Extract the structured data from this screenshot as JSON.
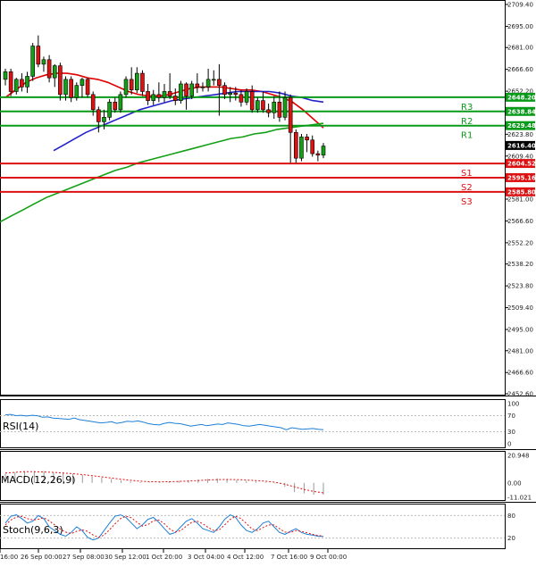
{
  "chart_data": {
    "type": "candlestick",
    "price_axis": {
      "ticks": [
        "2709.40",
        "2695.00",
        "2681.00",
        "2666.60",
        "2652.20",
        "2638.20",
        "2623.80",
        "2609.40",
        "2595.00",
        "2581.00",
        "2566.60",
        "2552.20",
        "2538.20",
        "2523.80",
        "2509.40",
        "2495.00",
        "2481.00",
        "2466.60",
        "2452.60"
      ],
      "current_price": "2616.40",
      "ylim": [
        2452.6,
        2709.4
      ]
    },
    "time_axis": {
      "ticks": [
        "16:00",
        "26 Sep 00:00",
        "27 Sep 08:00",
        "30 Sep 12:00",
        "1 Oct 20:00",
        "3 Oct 04:00",
        "4 Oct 12:00",
        "7 Oct 16:00",
        "9 Oct 00:00"
      ]
    },
    "levels": [
      {
        "name": "R3",
        "value": "2648.20",
        "color": "#0a9a1a"
      },
      {
        "name": "R2",
        "value": "2638.84",
        "color": "#0a9a1a"
      },
      {
        "name": "R1",
        "value": "2629.48",
        "color": "#0a9a1a"
      },
      {
        "name": "S1",
        "value": "2604.52",
        "color": "#dd1111"
      },
      {
        "name": "S2",
        "value": "2595.16",
        "color": "#dd1111"
      },
      {
        "name": "S3",
        "value": "2585.80",
        "color": "#dd1111"
      }
    ],
    "candles": [
      {
        "o": 2660,
        "h": 2667,
        "c": 2665,
        "l": 2656
      },
      {
        "o": 2665,
        "h": 2667,
        "c": 2652,
        "l": 2649
      },
      {
        "o": 2652,
        "h": 2661,
        "c": 2660,
        "l": 2650
      },
      {
        "o": 2660,
        "h": 2664,
        "c": 2655,
        "l": 2652
      },
      {
        "o": 2655,
        "h": 2665,
        "c": 2662,
        "l": 2651
      },
      {
        "o": 2662,
        "h": 2684,
        "c": 2682,
        "l": 2659
      },
      {
        "o": 2682,
        "h": 2689,
        "c": 2670,
        "l": 2668
      },
      {
        "o": 2670,
        "h": 2675,
        "c": 2673,
        "l": 2665
      },
      {
        "o": 2673,
        "h": 2676,
        "c": 2661,
        "l": 2658
      },
      {
        "o": 2661,
        "h": 2670,
        "c": 2669,
        "l": 2655
      },
      {
        "o": 2669,
        "h": 2671,
        "c": 2650,
        "l": 2646
      },
      {
        "o": 2650,
        "h": 2662,
        "c": 2660,
        "l": 2646
      },
      {
        "o": 2660,
        "h": 2662,
        "c": 2648,
        "l": 2645
      },
      {
        "o": 2648,
        "h": 2658,
        "c": 2656,
        "l": 2646
      },
      {
        "o": 2656,
        "h": 2661,
        "c": 2660,
        "l": 2648
      },
      {
        "o": 2660,
        "h": 2661,
        "c": 2650,
        "l": 2648
      },
      {
        "o": 2650,
        "h": 2652,
        "c": 2640,
        "l": 2636
      },
      {
        "o": 2640,
        "h": 2642,
        "c": 2632,
        "l": 2625
      },
      {
        "o": 2632,
        "h": 2640,
        "c": 2635,
        "l": 2627
      },
      {
        "o": 2635,
        "h": 2647,
        "c": 2645,
        "l": 2633
      },
      {
        "o": 2645,
        "h": 2648,
        "c": 2640,
        "l": 2638
      },
      {
        "o": 2640,
        "h": 2652,
        "c": 2650,
        "l": 2638
      },
      {
        "o": 2650,
        "h": 2662,
        "c": 2660,
        "l": 2648
      },
      {
        "o": 2660,
        "h": 2668,
        "c": 2653,
        "l": 2650
      },
      {
        "o": 2653,
        "h": 2668,
        "c": 2664,
        "l": 2651
      },
      {
        "o": 2664,
        "h": 2666,
        "c": 2652,
        "l": 2649
      },
      {
        "o": 2652,
        "h": 2657,
        "c": 2646,
        "l": 2643
      },
      {
        "o": 2646,
        "h": 2653,
        "c": 2650,
        "l": 2643
      },
      {
        "o": 2650,
        "h": 2658,
        "c": 2648,
        "l": 2645
      },
      {
        "o": 2648,
        "h": 2657,
        "c": 2652,
        "l": 2645
      },
      {
        "o": 2652,
        "h": 2664,
        "c": 2649,
        "l": 2647
      },
      {
        "o": 2649,
        "h": 2654,
        "c": 2646,
        "l": 2643
      },
      {
        "o": 2646,
        "h": 2659,
        "c": 2657,
        "l": 2644
      },
      {
        "o": 2657,
        "h": 2658,
        "c": 2649,
        "l": 2640
      },
      {
        "o": 2649,
        "h": 2659,
        "c": 2657,
        "l": 2647
      },
      {
        "o": 2657,
        "h": 2664,
        "c": 2655,
        "l": 2651
      },
      {
        "o": 2655,
        "h": 2658,
        "c": 2655,
        "l": 2652
      },
      {
        "o": 2655,
        "h": 2667,
        "c": 2660,
        "l": 2652
      },
      {
        "o": 2660,
        "h": 2666,
        "c": 2660,
        "l": 2656
      },
      {
        "o": 2660,
        "h": 2670,
        "c": 2656,
        "l": 2636
      },
      {
        "o": 2656,
        "h": 2658,
        "c": 2650,
        "l": 2647
      },
      {
        "o": 2650,
        "h": 2655,
        "c": 2651,
        "l": 2645
      },
      {
        "o": 2651,
        "h": 2655,
        "c": 2650,
        "l": 2646
      },
      {
        "o": 2650,
        "h": 2653,
        "c": 2645,
        "l": 2642
      },
      {
        "o": 2645,
        "h": 2654,
        "c": 2652,
        "l": 2643
      },
      {
        "o": 2652,
        "h": 2656,
        "c": 2640,
        "l": 2638
      },
      {
        "o": 2640,
        "h": 2648,
        "c": 2646,
        "l": 2638
      },
      {
        "o": 2646,
        "h": 2652,
        "c": 2640,
        "l": 2638
      },
      {
        "o": 2640,
        "h": 2644,
        "c": 2638,
        "l": 2635
      },
      {
        "o": 2638,
        "h": 2649,
        "c": 2645,
        "l": 2634
      },
      {
        "o": 2645,
        "h": 2652,
        "c": 2635,
        "l": 2632
      },
      {
        "o": 2635,
        "h": 2652,
        "c": 2648,
        "l": 2633
      },
      {
        "o": 2648,
        "h": 2650,
        "c": 2625,
        "l": 2605
      },
      {
        "o": 2625,
        "h": 2627,
        "c": 2608,
        "l": 2605
      },
      {
        "o": 2608,
        "h": 2624,
        "c": 2622,
        "l": 2606
      },
      {
        "o": 2622,
        "h": 2624,
        "c": 2620,
        "l": 2612
      },
      {
        "o": 2620,
        "h": 2623,
        "c": 2611,
        "l": 2609
      },
      {
        "o": 2611,
        "h": 2613,
        "c": 2610,
        "l": 2606
      },
      {
        "o": 2610,
        "h": 2618,
        "c": 2616,
        "l": 2608
      }
    ],
    "moving_averages": [
      {
        "color": "#e00000",
        "values": [
          2648,
          2653,
          2658,
          2661,
          2663,
          2664,
          2664,
          2663,
          2661,
          2660,
          2658,
          2655,
          2652,
          2650,
          2649,
          2649,
          2650,
          2652,
          2654,
          2655,
          2655,
          2655,
          2654,
          2653,
          2653,
          2652,
          2650,
          2648,
          2645,
          2640,
          2634,
          2628
        ]
      },
      {
        "color": "#2222cc",
        "values": [
          2613,
          2617,
          2621,
          2625,
          2628,
          2631,
          2634,
          2637,
          2640,
          2642,
          2644,
          2646,
          2647,
          2648,
          2649,
          2650,
          2651,
          2652,
          2652,
          2652,
          2652,
          2651,
          2649,
          2648,
          2646,
          2645
        ]
      },
      {
        "color": "#14a014",
        "values": [
          2566,
          2570,
          2574,
          2578,
          2582,
          2585,
          2588,
          2591,
          2594,
          2597,
          2600,
          2602,
          2605,
          2607,
          2609,
          2611,
          2613,
          2615,
          2617,
          2619,
          2621,
          2622,
          2624,
          2625,
          2627,
          2628,
          2629,
          2630,
          2631
        ]
      }
    ],
    "rsi": {
      "label": "RSI(14)",
      "ticks": [
        "100",
        "70",
        "30",
        "0"
      ],
      "values": [
        72,
        73,
        70,
        71,
        69,
        71,
        70,
        66,
        67,
        64,
        63,
        62,
        61,
        64,
        60,
        58,
        56,
        54,
        52,
        53,
        55,
        51,
        53,
        56,
        55,
        57,
        54,
        50,
        48,
        47,
        51,
        53,
        51,
        50,
        47,
        44,
        46,
        48,
        45,
        47,
        49,
        48,
        52,
        50,
        48,
        45,
        44,
        46,
        48,
        46,
        44,
        42,
        40,
        35,
        40,
        38,
        36,
        37,
        38,
        36,
        35
      ]
    },
    "macd": {
      "label": "MACD(12,26,9)",
      "ticks": [
        "20.948",
        "0.00",
        "-11.021"
      ],
      "histogram": [
        7,
        8,
        9,
        9,
        9,
        8,
        8,
        7,
        6,
        5,
        4,
        3,
        2,
        1,
        0.5,
        0.3,
        0.5,
        1,
        1.5,
        2,
        2.5,
        3,
        3.5,
        3,
        2,
        1.5,
        1,
        0.5,
        -0.5,
        -3,
        -7,
        -8,
        -9,
        -9
      ],
      "signal": [
        7.5,
        8,
        8.5,
        8.5,
        8.3,
        8,
        7.5,
        7,
        6.3,
        5.5,
        4.6,
        3.7,
        2.8,
        2,
        1.3,
        0.9,
        0.8,
        0.9,
        1.1,
        1.4,
        1.8,
        2.2,
        2.5,
        2.6,
        2.5,
        2.2,
        1.8,
        1.3,
        0.5,
        -1,
        -3,
        -5,
        -6.5,
        -7.6
      ]
    },
    "stoch": {
      "label": "Stoch(9,6,3)",
      "ticks": [
        "80",
        "20"
      ],
      "k": [
        60,
        78,
        82,
        72,
        60,
        65,
        80,
        72,
        50,
        40,
        30,
        25,
        35,
        50,
        40,
        22,
        15,
        20,
        40,
        60,
        78,
        82,
        75,
        60,
        45,
        55,
        70,
        75,
        62,
        45,
        30,
        35,
        50,
        65,
        72,
        60,
        45,
        40,
        35,
        50,
        70,
        82,
        75,
        55,
        40,
        35,
        45,
        60,
        65,
        50,
        35,
        30,
        38,
        45,
        35,
        30,
        28,
        25,
        24
      ],
      "d": [
        55,
        68,
        76,
        78,
        72,
        68,
        70,
        74,
        66,
        55,
        44,
        36,
        32,
        38,
        42,
        38,
        28,
        22,
        28,
        42,
        58,
        72,
        78,
        74,
        62,
        52,
        56,
        66,
        68,
        58,
        44,
        36,
        40,
        52,
        62,
        65,
        58,
        48,
        40,
        42,
        55,
        70,
        78,
        72,
        58,
        44,
        40,
        48,
        55,
        55,
        45,
        36,
        35,
        40,
        38,
        34,
        30,
        27,
        25
      ]
    }
  }
}
